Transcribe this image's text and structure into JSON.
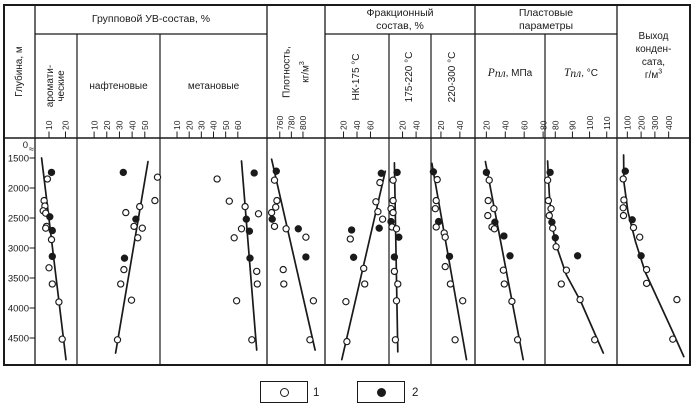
{
  "chart_data": {
    "type": "scatter",
    "orientation": "depth-profile",
    "point_format": "[value, depth_m, series]",
    "depth_axis": {
      "label": "Глубина, м",
      "break_symbol": "≈",
      "ticks": [
        0,
        1500,
        2000,
        2500,
        3000,
        3500,
        4000,
        4500
      ],
      "ylim": [
        0,
        4900
      ]
    },
    "group_titles": {
      "uv": "Групповой УВ-состав, %",
      "frac_line1": "Фракционный",
      "frac_line2": "состав, %",
      "res_line1": "Пластовые",
      "res_line2": "параметры"
    },
    "legend": [
      {
        "marker": "open-circle",
        "label": "1"
      },
      {
        "marker": "filled-circle",
        "label": "2"
      }
    ],
    "panels": [
      {
        "id": "aromatic",
        "title_lines": [
          "аромати-",
          "ческие"
        ],
        "ticks": [
          10,
          20
        ],
        "xlim": [
          1.5,
          27
        ],
        "trend": [
          [
            5.5,
            1500
          ],
          [
            20.3,
            4860
          ]
        ],
        "points": [
          [
            11.5,
            1740,
            2
          ],
          [
            9,
            1850,
            1
          ],
          [
            7,
            2210,
            1
          ],
          [
            7.5,
            2300,
            1
          ],
          [
            6.5,
            2380,
            1
          ],
          [
            8,
            2420,
            1
          ],
          [
            10.5,
            2480,
            2
          ],
          [
            8.5,
            2640,
            1
          ],
          [
            8,
            2670,
            1
          ],
          [
            12,
            2710,
            2
          ],
          [
            11.5,
            2860,
            1
          ],
          [
            12,
            3140,
            2
          ],
          [
            10,
            3330,
            1
          ],
          [
            12,
            3600,
            1
          ],
          [
            16,
            3900,
            1
          ],
          [
            18,
            4520,
            1
          ]
        ]
      },
      {
        "id": "naphthenic",
        "title": "нафтеновые",
        "ticks": [
          10,
          20,
          30,
          40,
          50
        ],
        "xlim": [
          -3.5,
          62
        ],
        "trend": [
          [
            52.5,
            1560
          ],
          [
            27,
            4750
          ]
        ],
        "points": [
          [
            33,
            1740,
            2
          ],
          [
            60,
            1820,
            1
          ],
          [
            58,
            2210,
            1
          ],
          [
            46,
            2310,
            1
          ],
          [
            35,
            2410,
            1
          ],
          [
            43,
            2520,
            2
          ],
          [
            41.5,
            2640,
            1
          ],
          [
            48,
            2670,
            1
          ],
          [
            44.5,
            2830,
            1
          ],
          [
            34,
            3170,
            2
          ],
          [
            33.5,
            3360,
            1
          ],
          [
            31,
            3600,
            1
          ],
          [
            39.5,
            3870,
            1
          ],
          [
            28.5,
            4530,
            1
          ]
        ]
      },
      {
        "id": "methane",
        "title": "метановые",
        "ticks": [
          10,
          20,
          30,
          40,
          50,
          60
        ],
        "xlim": [
          -4,
          84
        ],
        "trend": [
          [
            63,
            1550
          ],
          [
            75.5,
            4700
          ]
        ],
        "points": [
          [
            73.5,
            1750,
            2
          ],
          [
            43,
            1850,
            1
          ],
          [
            53,
            2220,
            1
          ],
          [
            66,
            2310,
            1
          ],
          [
            77,
            2430,
            1
          ],
          [
            67,
            2520,
            2
          ],
          [
            63,
            2680,
            1
          ],
          [
            69.5,
            2720,
            2
          ],
          [
            57,
            2830,
            1
          ],
          [
            70,
            3170,
            2
          ],
          [
            75.5,
            3390,
            1
          ],
          [
            76,
            3600,
            1
          ],
          [
            59,
            3880,
            1
          ],
          [
            71.5,
            4530,
            1
          ]
        ]
      },
      {
        "id": "density",
        "title_lines": [
          "Плотность,",
          "кг/м"
        ],
        "title_sup": "3",
        "ticks": [
          760,
          780,
          800
        ],
        "xlim": [
          738,
          838
        ],
        "trend": [
          [
            746,
            1520
          ],
          [
            821,
            4700
          ]
        ],
        "points": [
          [
            754,
            1720,
            2
          ],
          [
            751,
            1870,
            1
          ],
          [
            755,
            2210,
            1
          ],
          [
            753,
            2320,
            1
          ],
          [
            746,
            2410,
            1
          ],
          [
            747,
            2520,
            2
          ],
          [
            751,
            2640,
            1
          ],
          [
            771,
            2680,
            1
          ],
          [
            792,
            2680,
            2
          ],
          [
            805,
            2820,
            1
          ],
          [
            805,
            3150,
            2
          ],
          [
            766,
            3360,
            1
          ],
          [
            767,
            3600,
            1
          ],
          [
            818,
            3880,
            1
          ],
          [
            812,
            4530,
            1
          ]
        ]
      },
      {
        "id": "nk175",
        "title": "НК-175 °С",
        "ticks": [
          20,
          40,
          60
        ],
        "xlim": [
          -7.5,
          87.5
        ],
        "trend": [
          [
            82,
            1720
          ],
          [
            17.5,
            4860
          ]
        ],
        "points": [
          [
            76,
            1755,
            2
          ],
          [
            74,
            1910,
            1
          ],
          [
            68,
            2230,
            1
          ],
          [
            71,
            2395,
            1
          ],
          [
            78,
            2520,
            1
          ],
          [
            73,
            2670,
            2
          ],
          [
            32,
            2700,
            2
          ],
          [
            30,
            2850,
            1
          ],
          [
            35,
            3155,
            2
          ],
          [
            50,
            3340,
            1
          ],
          [
            51.5,
            3600,
            1
          ],
          [
            23.5,
            3895,
            1
          ],
          [
            25,
            4560,
            1
          ]
        ]
      },
      {
        "id": "f175_220",
        "title": "175-220 °С",
        "ticks": [
          20,
          40
        ],
        "xlim": [
          0,
          62
        ],
        "trend": [
          [
            8,
            1580
          ],
          [
            13,
            4730
          ]
        ],
        "points": [
          [
            12,
            1740,
            2
          ],
          [
            6,
            1870,
            1
          ],
          [
            6,
            2210,
            1
          ],
          [
            3,
            2345,
            1
          ],
          [
            6,
            2410,
            1
          ],
          [
            3,
            2560,
            2
          ],
          [
            4.5,
            2650,
            1
          ],
          [
            11,
            2680,
            1
          ],
          [
            14.5,
            2820,
            2
          ],
          [
            8,
            3150,
            2
          ],
          [
            8,
            3390,
            1
          ],
          [
            13,
            3600,
            1
          ],
          [
            11,
            3880,
            1
          ],
          [
            9.5,
            4530,
            1
          ]
        ]
      },
      {
        "id": "f220_300",
        "title": "220-300 °С",
        "ticks": [
          20,
          40
        ],
        "xlim": [
          9.5,
          56
        ],
        "trend": [
          [
            10.5,
            1590
          ],
          [
            47,
            4860
          ]
        ],
        "points": [
          [
            12,
            1730,
            2
          ],
          [
            16,
            1860,
            1
          ],
          [
            15,
            2210,
            1
          ],
          [
            14,
            2345,
            1
          ],
          [
            17.5,
            2560,
            2
          ],
          [
            15,
            2650,
            1
          ],
          [
            23.5,
            2750,
            1
          ],
          [
            24.5,
            2820,
            1
          ],
          [
            29,
            3140,
            2
          ],
          [
            24.5,
            3310,
            1
          ],
          [
            30,
            3600,
            1
          ],
          [
            43,
            3880,
            1
          ],
          [
            35,
            4530,
            1
          ]
        ]
      },
      {
        "id": "p_res",
        "title_parts": {
          "main": "Р",
          "sub": "пл",
          "rest": ", МПа"
        },
        "ticks": [
          20,
          40,
          60,
          80
        ],
        "xlim": [
          8,
          82
        ],
        "trend": [
          [
            19,
            1560
          ],
          [
            59,
            4860
          ]
        ],
        "points": [
          [
            20,
            1740,
            2
          ],
          [
            23,
            1870,
            1
          ],
          [
            22,
            2210,
            1
          ],
          [
            28,
            2345,
            1
          ],
          [
            21.5,
            2460,
            1
          ],
          [
            29,
            2570,
            2
          ],
          [
            26,
            2650,
            1
          ],
          [
            28.5,
            2680,
            1
          ],
          [
            38.5,
            2800,
            2
          ],
          [
            45,
            3130,
            2
          ],
          [
            38,
            3370,
            1
          ],
          [
            39,
            3600,
            1
          ],
          [
            47,
            3890,
            1
          ],
          [
            53,
            4530,
            1
          ]
        ]
      },
      {
        "id": "t_res",
        "title_parts": {
          "main": "Т",
          "sub": "пл",
          "rest": ", °С"
        },
        "ticks": [
          80,
          90,
          100,
          110
        ],
        "xlim": [
          74,
          116
        ],
        "trend": [
          [
            75.5,
            1550
          ],
          [
            76.5,
            2100
          ],
          [
            78,
            2600
          ],
          [
            80.5,
            2950
          ],
          [
            86.5,
            3450
          ],
          [
            95,
            3900
          ],
          [
            108,
            4750
          ]
        ],
        "points": [
          [
            77,
            1740,
            2
          ],
          [
            75.5,
            1870,
            1
          ],
          [
            76,
            2210,
            1
          ],
          [
            77.5,
            2345,
            1
          ],
          [
            76.5,
            2460,
            1
          ],
          [
            78,
            2570,
            2
          ],
          [
            78.5,
            2670,
            1
          ],
          [
            80,
            2830,
            2
          ],
          [
            80.5,
            2980,
            1
          ],
          [
            93,
            3130,
            2
          ],
          [
            86.5,
            3370,
            1
          ],
          [
            83.5,
            3600,
            1
          ],
          [
            94.5,
            3860,
            1
          ],
          [
            103,
            4530,
            1
          ]
        ]
      },
      {
        "id": "condensate",
        "title_lines": [
          "Выход",
          "конден-",
          "сата,",
          "г/м"
        ],
        "title_sup": "3",
        "ticks": [
          100,
          200,
          300,
          400
        ],
        "xlim": [
          25,
          555
        ],
        "trend": [
          [
            73,
            1450
          ],
          [
            75,
            1900
          ],
          [
            105,
            2400
          ],
          [
            160,
            2900
          ],
          [
            230,
            3400
          ],
          [
            330,
            3900
          ],
          [
            430,
            4400
          ],
          [
            510,
            4810
          ]
        ],
        "points": [
          [
            85,
            1720,
            2
          ],
          [
            70,
            1850,
            1
          ],
          [
            75,
            2200,
            1
          ],
          [
            70,
            2330,
            1
          ],
          [
            72,
            2460,
            1
          ],
          [
            135,
            2530,
            2
          ],
          [
            145,
            2660,
            1
          ],
          [
            190,
            2820,
            1
          ],
          [
            200,
            3130,
            2
          ],
          [
            240,
            3360,
            1
          ],
          [
            240,
            3590,
            1
          ],
          [
            460,
            3860,
            1
          ],
          [
            430,
            4520,
            1
          ]
        ]
      }
    ]
  }
}
